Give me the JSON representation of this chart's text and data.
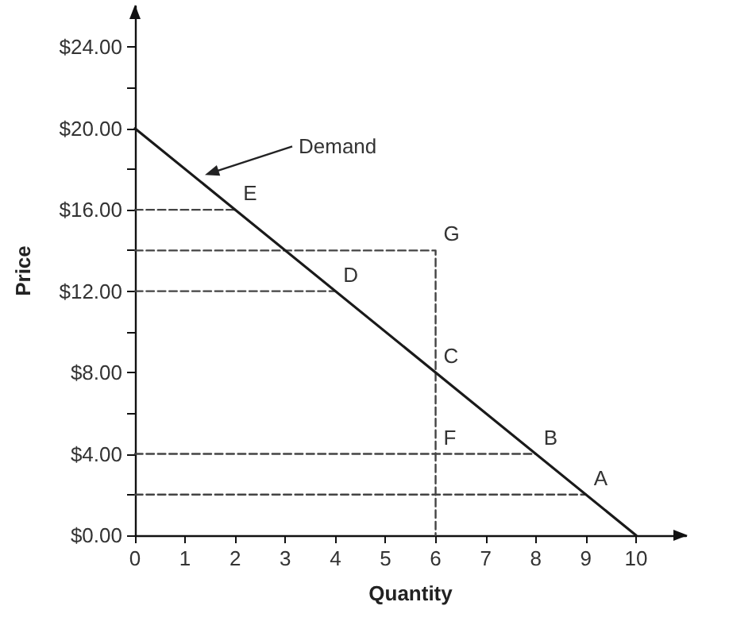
{
  "chart_data": {
    "type": "line",
    "xlabel": "Quantity",
    "ylabel": "Price",
    "xlim": [
      0,
      11
    ],
    "ylim": [
      0,
      26
    ],
    "xticks": [
      0,
      1,
      2,
      3,
      4,
      5,
      6,
      7,
      8,
      9,
      10
    ],
    "yticks": [
      {
        "value": 0,
        "label": "$0.00"
      },
      {
        "value": 2,
        "label": null
      },
      {
        "value": 4,
        "label": "$4.00"
      },
      {
        "value": 6,
        "label": null
      },
      {
        "value": 8,
        "label": "$8.00"
      },
      {
        "value": 10,
        "label": null
      },
      {
        "value": 12,
        "label": "$12.00"
      },
      {
        "value": 14,
        "label": null
      },
      {
        "value": 16,
        "label": "$16.00"
      },
      {
        "value": 18,
        "label": null
      },
      {
        "value": 20,
        "label": "$20.00"
      },
      {
        "value": 22,
        "label": null
      },
      {
        "value": 24,
        "label": "$24.00"
      }
    ],
    "grid": false,
    "marker": "none",
    "series": [
      {
        "color": "#1a1a1a",
        "line_style": "solid",
        "x": [
          0,
          10
        ],
        "values": [
          20,
          0
        ]
      },
      {
        "color": "#444444",
        "line_style": "dashed",
        "x": [
          0,
          2
        ],
        "values": [
          16,
          16
        ]
      },
      {
        "color": "#444444",
        "line_style": "dashed",
        "x": [
          0,
          6,
          6
        ],
        "values": [
          14,
          14,
          0
        ]
      },
      {
        "color": "#444444",
        "line_style": "dashed",
        "x": [
          0,
          4
        ],
        "values": [
          12,
          12
        ]
      },
      {
        "color": "#444444",
        "line_style": "dashed",
        "x": [
          0,
          8
        ],
        "values": [
          4,
          4
        ]
      },
      {
        "color": "#444444",
        "line_style": "dashed",
        "x": [
          0,
          9
        ],
        "values": [
          2,
          2
        ]
      }
    ],
    "annotations": [
      "Demand",
      {
        "text": "E",
        "x": 2,
        "y": 16
      },
      {
        "text": "G",
        "x": 6,
        "y": 14
      },
      {
        "text": "D",
        "x": 4,
        "y": 12
      },
      {
        "text": "C",
        "x": 6,
        "y": 8
      },
      {
        "text": "F",
        "x": 6,
        "y": 4
      },
      {
        "text": "B",
        "x": 8,
        "y": 4
      },
      {
        "text": "A",
        "x": 9,
        "y": 2
      }
    ]
  }
}
